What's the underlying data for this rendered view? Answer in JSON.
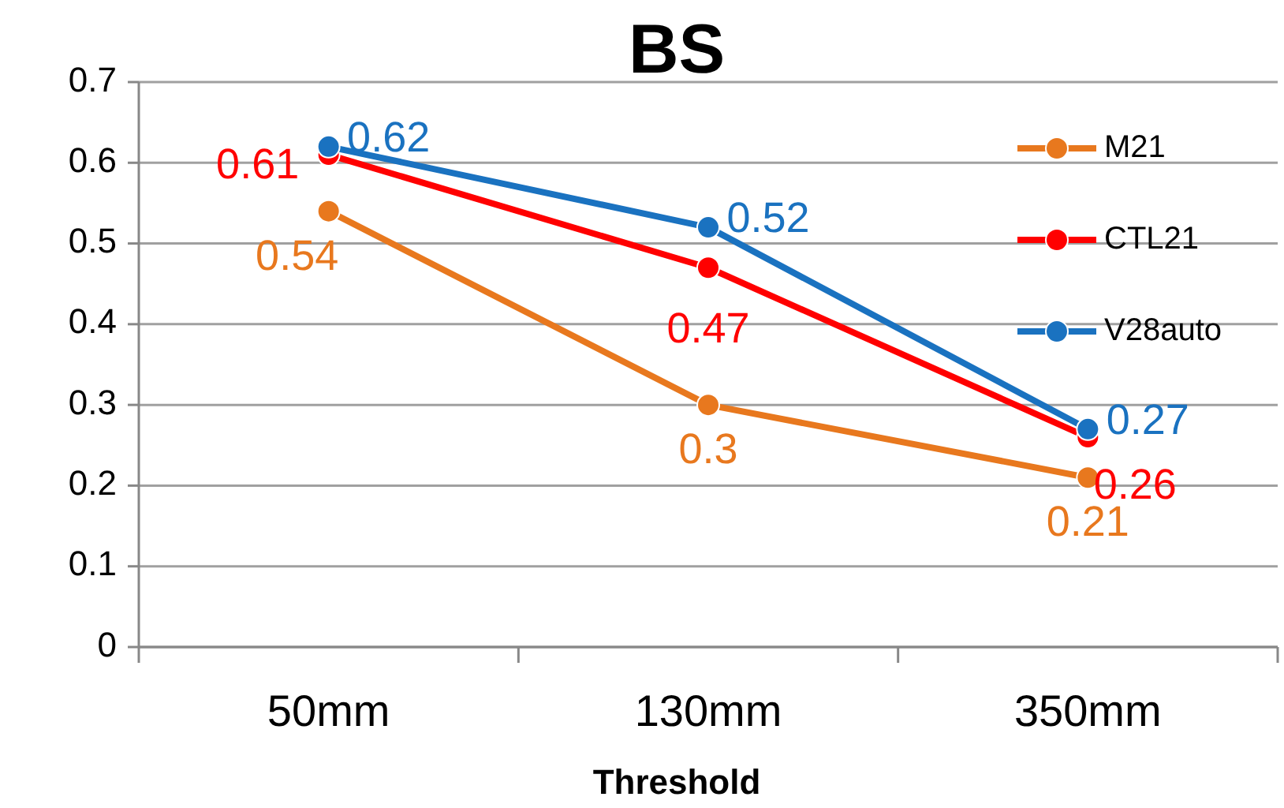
{
  "chart_data": {
    "type": "line",
    "title": "BS",
    "xlabel": "Threshold",
    "categories": [
      "50mm",
      "130mm",
      "350mm"
    ],
    "series": [
      {
        "name": "M21",
        "color": "#e8781e",
        "values": [
          0.54,
          0.3,
          0.21
        ]
      },
      {
        "name": "CTL21",
        "color": "#ff0000",
        "values": [
          0.61,
          0.47,
          0.26
        ]
      },
      {
        "name": "V28auto",
        "color": "#1a72c0",
        "values": [
          0.62,
          0.52,
          0.27
        ]
      }
    ],
    "ylim": [
      0,
      0.7
    ],
    "yticks": [
      0,
      0.1,
      0.2,
      0.3,
      0.4,
      0.5,
      0.6,
      0.7
    ],
    "grid": "y",
    "legend": "top right",
    "marker": "circle",
    "data_labels": true
  }
}
